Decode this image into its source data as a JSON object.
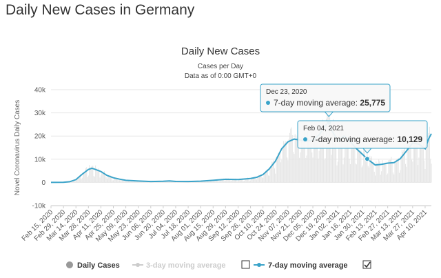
{
  "page": {
    "heading": "Daily New Cases in Germany"
  },
  "chart_data": {
    "type": "line",
    "title": "Daily New Cases",
    "subtitle_lines": [
      "Cases per Day",
      "Data as of 0:00 GMT+0"
    ],
    "xlabel": "",
    "ylabel": "Novel Coronavirus Daily Cases",
    "ylim": [
      -10000,
      40000
    ],
    "yticks": [
      {
        "value": -10000,
        "label": "-10k"
      },
      {
        "value": 0,
        "label": "0"
      },
      {
        "value": 10000,
        "label": "10k"
      },
      {
        "value": 20000,
        "label": "20k"
      },
      {
        "value": 30000,
        "label": "30k"
      },
      {
        "value": 40000,
        "label": "40k"
      }
    ],
    "grid": true,
    "x_start": "Feb 15, 2020",
    "x_end": "Apr 17, 2021",
    "x_tick_labels": [
      "Feb 15, 2020",
      "Feb 29, 2020",
      "Mar 14, 2020",
      "Mar 28, 2020",
      "Apr 11, 2020",
      "Apr 25, 2020",
      "May 09, 2020",
      "May 23, 2020",
      "Jun 06, 2020",
      "Jun 20, 2020",
      "Jul 04, 2020",
      "Jul 18, 2020",
      "Aug 01, 2020",
      "Aug 15, 2020",
      "Aug 29, 2020",
      "Sep 12, 2020",
      "Sep 26, 2020",
      "Oct 10, 2020",
      "Oct 24, 2020",
      "Nov 07, 2020",
      "Nov 21, 2020",
      "Dec 05, 2020",
      "Dec 19, 2020",
      "Jan 02, 2021",
      "Jan 16, 2021",
      "Jan 30, 2021",
      "Feb 13, 2021",
      "Feb 27, 2021",
      "Mar 13, 2021",
      "Mar 27, 2021",
      "Apr 10, 2021"
    ],
    "series": [
      {
        "name": "7-day moving average",
        "color": "#3aa3c9",
        "points": [
          [
            "Feb 15, 2020",
            0
          ],
          [
            "Feb 29, 2020",
            50
          ],
          [
            "Mar 07, 2020",
            300
          ],
          [
            "Mar 14, 2020",
            1200
          ],
          [
            "Mar 21, 2020",
            3500
          ],
          [
            "Mar 28, 2020",
            5600
          ],
          [
            "Apr 01, 2020",
            6100
          ],
          [
            "Apr 04, 2020",
            5700
          ],
          [
            "Apr 11, 2020",
            4700
          ],
          [
            "Apr 18, 2020",
            3000
          ],
          [
            "Apr 25, 2020",
            2000
          ],
          [
            "May 02, 2020",
            1400
          ],
          [
            "May 09, 2020",
            900
          ],
          [
            "May 23, 2020",
            600
          ],
          [
            "Jun 06, 2020",
            400
          ],
          [
            "Jun 20, 2020",
            500
          ],
          [
            "Jun 27, 2020",
            650
          ],
          [
            "Jul 04, 2020",
            420
          ],
          [
            "Jul 18, 2020",
            400
          ],
          [
            "Aug 01, 2020",
            550
          ],
          [
            "Aug 15, 2020",
            900
          ],
          [
            "Aug 29, 2020",
            1350
          ],
          [
            "Sep 12, 2020",
            1250
          ],
          [
            "Sep 26, 2020",
            1700
          ],
          [
            "Oct 03, 2020",
            2200
          ],
          [
            "Oct 10, 2020",
            3400
          ],
          [
            "Oct 17, 2020",
            5800
          ],
          [
            "Oct 24, 2020",
            9200
          ],
          [
            "Oct 31, 2020",
            14500
          ],
          [
            "Nov 07, 2020",
            17500
          ],
          [
            "Nov 14, 2020",
            18700
          ],
          [
            "Nov 21, 2020",
            18200
          ],
          [
            "Nov 28, 2020",
            17800
          ],
          [
            "Dec 05, 2020",
            18200
          ],
          [
            "Dec 12, 2020",
            20500
          ],
          [
            "Dec 19, 2020",
            24500
          ],
          [
            "Dec 23, 2020",
            25775
          ],
          [
            "Dec 26, 2020",
            22500
          ],
          [
            "Jan 02, 2021",
            18000
          ],
          [
            "Jan 09, 2021",
            20000
          ],
          [
            "Jan 16, 2021",
            17500
          ],
          [
            "Jan 23, 2021",
            14500
          ],
          [
            "Jan 30, 2021",
            12000
          ],
          [
            "Feb 04, 2021",
            10129
          ],
          [
            "Feb 13, 2021",
            7500
          ],
          [
            "Feb 20, 2021",
            7800
          ],
          [
            "Feb 27, 2021",
            8300
          ],
          [
            "Mar 06, 2021",
            8500
          ],
          [
            "Mar 13, 2021",
            10200
          ],
          [
            "Mar 20, 2021",
            13500
          ],
          [
            "Mar 27, 2021",
            17000
          ],
          [
            "Apr 03, 2021",
            16500
          ],
          [
            "Apr 10, 2021",
            14500
          ],
          [
            "Apr 14, 2021",
            18800
          ],
          [
            "Apr 17, 2021",
            21000
          ]
        ]
      }
    ],
    "bars_series": {
      "name": "Daily Cases",
      "color": "#e5e5e5",
      "note": "rendered as faint vertical bars behind the average line"
    },
    "tooltips": [
      {
        "date": "Dec 23, 2020",
        "label": "7-day moving average:",
        "value": "25,775",
        "value_num": 25775
      },
      {
        "date": "Feb 04, 2021",
        "label": "7-day moving average:",
        "value": "10,129",
        "value_num": 10129
      }
    ],
    "legend": {
      "placement": "bottom",
      "items": [
        {
          "label": "Daily Cases",
          "color": "#999999",
          "marker": "circle",
          "enabled": true
        },
        {
          "label": "3-day moving average",
          "color": "#cccccc",
          "marker": "line-dot",
          "enabled": false
        },
        {
          "label": "7-day moving average",
          "color": "#3aa3c9",
          "marker": "line-dot",
          "enabled": true
        }
      ],
      "checkboxes": [
        {
          "checked": false
        },
        {
          "checked": true
        }
      ]
    }
  }
}
